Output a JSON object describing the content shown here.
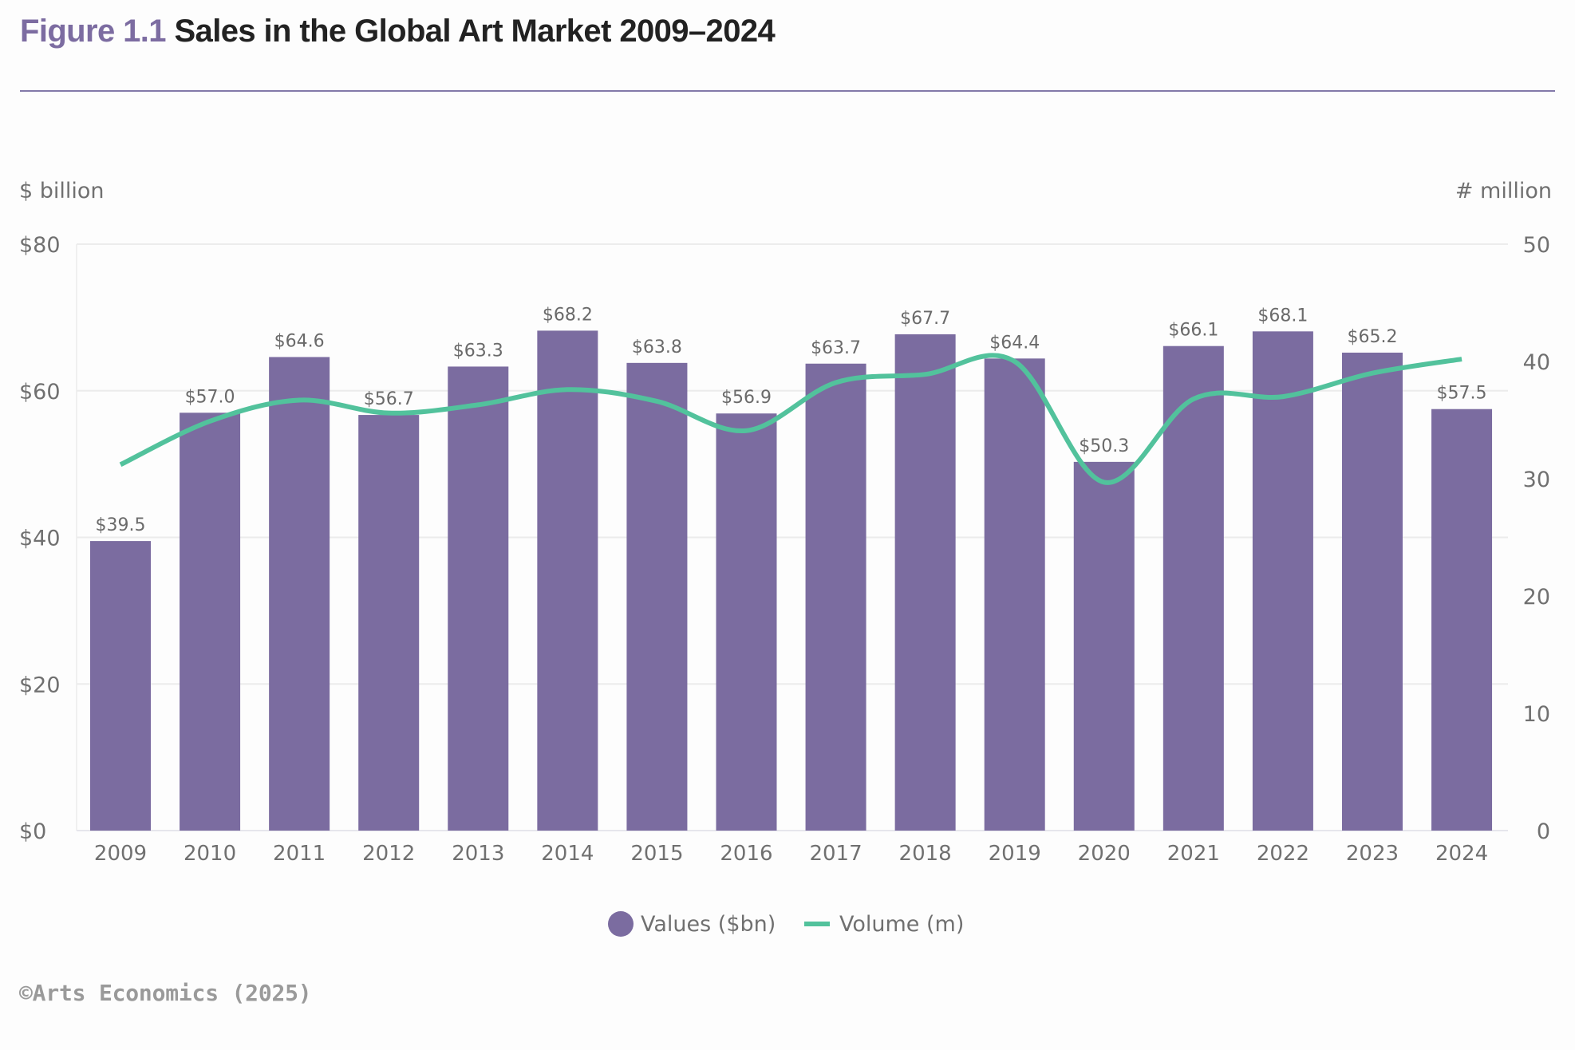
{
  "header": {
    "figure_number": "Figure 1.1",
    "title": "Sales in the Global Art Market 2009–2024"
  },
  "footer": {
    "source": "©Arts Economics (2025)"
  },
  "colors": {
    "bars": "#7b6ca0",
    "line": "#52c29c",
    "accent": "#7c6ca1",
    "text": "#707070",
    "grid": "#ececec"
  },
  "chart_data": {
    "type": "bar",
    "title": "Sales in the Global Art Market 2009–2024",
    "categories": [
      "2009",
      "2010",
      "2011",
      "2012",
      "2013",
      "2014",
      "2015",
      "2016",
      "2017",
      "2018",
      "2019",
      "2020",
      "2021",
      "2022",
      "2023",
      "2024"
    ],
    "series": [
      {
        "name": "Values ($bn)",
        "type": "bar",
        "axis": "left",
        "values": [
          39.5,
          57.0,
          64.6,
          56.7,
          63.3,
          68.2,
          63.8,
          56.9,
          63.7,
          67.7,
          64.4,
          50.3,
          66.1,
          68.1,
          65.2,
          57.5
        ],
        "labels": [
          "$39.5",
          "$57.0",
          "$64.6",
          "$56.7",
          "$63.3",
          "$68.2",
          "$63.8",
          "$56.9",
          "$63.7",
          "$67.7",
          "$64.4",
          "$50.3",
          "$66.1",
          "$68.1",
          "$65.2",
          "$57.5"
        ]
      },
      {
        "name": "Volume (m)",
        "type": "line",
        "axis": "right",
        "smooth": true,
        "values": [
          31.2,
          34.9,
          36.7,
          35.6,
          36.3,
          37.6,
          36.6,
          34.1,
          38.2,
          38.9,
          40.0,
          29.7,
          36.8,
          37.0,
          39.0,
          40.2
        ]
      }
    ],
    "xlabel": "",
    "ylabel": "$ billion",
    "y2label": "# million",
    "ylim": [
      0,
      80
    ],
    "y2lim": [
      0,
      50
    ],
    "yticks": [
      0,
      20,
      40,
      60,
      80
    ],
    "ytick_labels": [
      "$0",
      "$20",
      "$40",
      "$60",
      "$80"
    ],
    "y2ticks": [
      0,
      10,
      20,
      30,
      40,
      50
    ],
    "y2tick_labels": [
      "0",
      "10",
      "20",
      "30",
      "40",
      "50"
    ],
    "grid": true,
    "legend": {
      "position": "bottom-center",
      "entries": [
        {
          "label": "Values ($bn)",
          "marker": "circle"
        },
        {
          "label": "Volume (m)",
          "marker": "line"
        }
      ]
    }
  }
}
